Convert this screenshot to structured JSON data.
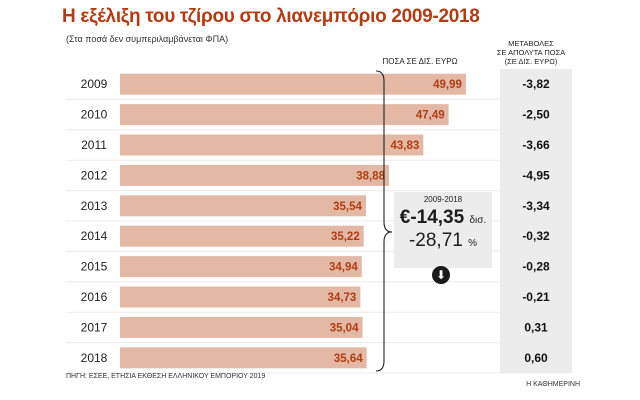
{
  "title": "Η εξέλιξη του τζίρου στο λιανεμπόριο 2009-2018",
  "subtitle": "(Στα ποσά δεν συμπεριλαμβάνεται ΦΠΑ)",
  "amount_header": "ΠΟΣΑ ΣΕ ΔΙΣ. ΕΥΡΩ",
  "change_header": [
    "ΜΕΤΑΒΟΛΕΣ",
    "ΣΕ ΑΠΟΛΥΤΑ ΠΟΣΑ",
    "(ΣΕ ΔΙΣ. ΕΥΡΩ)"
  ],
  "summary": {
    "period": "2009-2018",
    "amount": "€-14,35",
    "amount_unit": "δισ.",
    "percent": "-28,71",
    "percent_unit": "%"
  },
  "source": "ΠΗΓΗ: ΕΣΕΕ, ΕΤΗΣΙΑ ΕΚΘΕΣΗ ΕΛΛΗΝΙΚΟΥ ΕΜΠΟΡΙΟΥ 2019",
  "publisher": "Η ΚΑΘΗΜΕΡΙΝΗ",
  "colors": {
    "title": "#b23c15",
    "bar": "#e3b9a5",
    "value_text": "#b23c15",
    "row_band": "#ececec",
    "change_column": "#ececec"
  },
  "icons": {
    "down": "down-arrow-icon"
  },
  "chart_data": {
    "type": "bar",
    "orientation": "horizontal",
    "categories": [
      "2009",
      "2010",
      "2011",
      "2012",
      "2013",
      "2014",
      "2015",
      "2016",
      "2017",
      "2018"
    ],
    "values": [
      49.99,
      47.49,
      43.83,
      38.88,
      35.54,
      35.22,
      34.94,
      34.73,
      35.04,
      35.64
    ],
    "value_labels": [
      "49,99",
      "47,49",
      "43,83",
      "38,88",
      "35,54",
      "35,22",
      "34,94",
      "34,73",
      "35,04",
      "35,64"
    ],
    "changes": [
      -3.82,
      -2.5,
      -3.66,
      -4.95,
      -3.34,
      -0.32,
      -0.28,
      -0.21,
      0.31,
      0.6
    ],
    "change_labels": [
      "-3,82",
      "-2,50",
      "-3,66",
      "-4,95",
      "-3,34",
      "-0,32",
      "-0,28",
      "-0,21",
      "0,31",
      "0,60"
    ],
    "xlim": [
      0,
      50
    ]
  }
}
